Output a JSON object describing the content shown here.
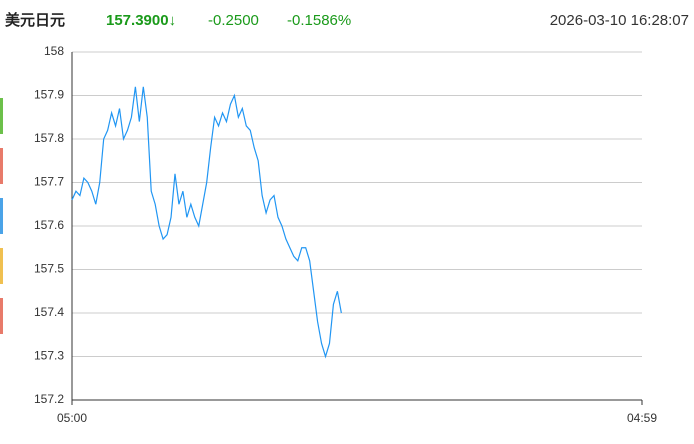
{
  "chart_data": {
    "type": "line",
    "title": "美元日元",
    "price": "157.3900↓",
    "change": "-0.2500",
    "change_percent": "-0.1586%",
    "timestamp": "2026-03-10 16:28:07",
    "color": "#2196f3",
    "grid": true,
    "xlim": [
      0,
      1439
    ],
    "xticks": [
      {
        "value": 0,
        "label": "05:00"
      },
      {
        "value": 1439,
        "label": "04:59"
      }
    ],
    "ylim": [
      157.2,
      158
    ],
    "yticks": [
      157.2,
      157.3,
      157.4,
      157.5,
      157.6,
      157.7,
      157.8,
      157.9,
      158
    ],
    "x": [
      0,
      10,
      20,
      30,
      40,
      50,
      60,
      70,
      80,
      90,
      100,
      110,
      120,
      130,
      140,
      150,
      160,
      170,
      180,
      190,
      200,
      210,
      220,
      230,
      240,
      250,
      260,
      270,
      280,
      290,
      300,
      310,
      320,
      330,
      340,
      350,
      360,
      370,
      380,
      390,
      400,
      410,
      420,
      430,
      440,
      450,
      460,
      470,
      480,
      490,
      500,
      510,
      520,
      530,
      540,
      550,
      560,
      570,
      580,
      590,
      600,
      610,
      620,
      630,
      640,
      650,
      660,
      670,
      680
    ],
    "values": [
      157.66,
      157.68,
      157.67,
      157.71,
      157.7,
      157.68,
      157.65,
      157.7,
      157.8,
      157.82,
      157.86,
      157.83,
      157.87,
      157.8,
      157.82,
      157.85,
      157.92,
      157.84,
      157.92,
      157.85,
      157.68,
      157.65,
      157.6,
      157.57,
      157.58,
      157.62,
      157.72,
      157.65,
      157.68,
      157.62,
      157.65,
      157.62,
      157.6,
      157.65,
      157.7,
      157.78,
      157.85,
      157.83,
      157.86,
      157.84,
      157.88,
      157.9,
      157.85,
      157.87,
      157.83,
      157.82,
      157.78,
      157.75,
      157.67,
      157.63,
      157.66,
      157.67,
      157.62,
      157.6,
      157.57,
      157.55,
      157.53,
      157.52,
      157.55,
      157.55,
      157.52,
      157.45,
      157.38,
      157.33,
      157.3,
      157.33,
      157.42,
      157.45,
      157.4
    ]
  }
}
